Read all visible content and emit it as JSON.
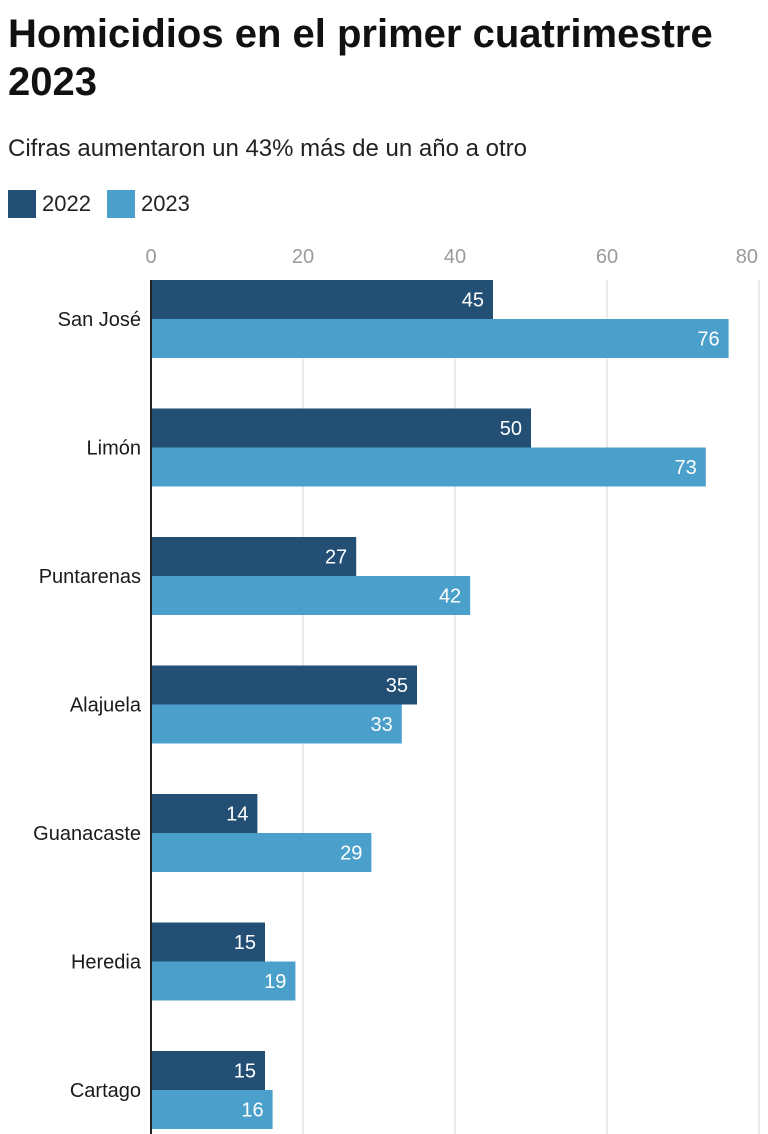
{
  "chart_data": {
    "type": "bar",
    "orientation": "horizontal",
    "title": "Homicidios en el primer cuatrimestre 2023",
    "subtitle": "Cifras aumentaron un 43% más de un año a otro",
    "categories": [
      "San José",
      "Limón",
      "Puntarenas",
      "Alajuela",
      "Guanacaste",
      "Heredia",
      "Cartago"
    ],
    "series": [
      {
        "name": "2022",
        "color": "#234f75",
        "values": [
          45,
          50,
          27,
          35,
          14,
          15,
          15
        ]
      },
      {
        "name": "2023",
        "color": "#4ba0cb",
        "values": [
          76,
          73,
          42,
          33,
          29,
          19,
          16
        ]
      }
    ],
    "xlim": [
      0,
      80
    ],
    "ticks": [
      "0",
      "20",
      "40",
      "60",
      "80"
    ],
    "legend_position": "top-left",
    "grid": true
  }
}
